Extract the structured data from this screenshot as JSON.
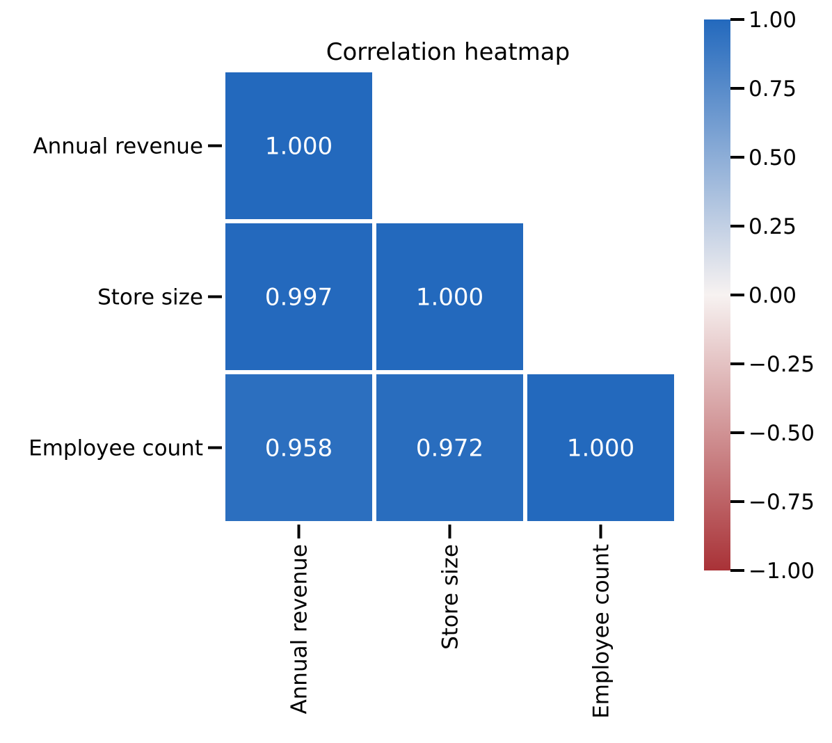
{
  "chart_data": {
    "type": "heatmap",
    "title": "Correlation heatmap",
    "rows": [
      "Annual revenue",
      "Store size",
      "Employee count"
    ],
    "columns": [
      "Annual revenue",
      "Store size",
      "Employee count"
    ],
    "mask": "upper-triangle",
    "values": [
      [
        1.0,
        null,
        null
      ],
      [
        0.997,
        1.0,
        null
      ],
      [
        0.958,
        0.972,
        1.0
      ]
    ],
    "value_labels": [
      [
        "1.000",
        null,
        null
      ],
      [
        "0.997",
        "1.000",
        null
      ],
      [
        "0.958",
        "0.972",
        "1.000"
      ]
    ],
    "colorbar": {
      "vmin": -1.0,
      "vmax": 1.0,
      "ticks": [
        1.0,
        0.75,
        0.5,
        0.25,
        0.0,
        -0.25,
        -0.5,
        -0.75,
        -1.0
      ],
      "tick_labels": [
        "1.00",
        "0.75",
        "0.50",
        "0.25",
        "0.00",
        "−0.25",
        "−0.50",
        "−0.75",
        "−1.00"
      ]
    },
    "colormap": {
      "low": "#a93237",
      "mid": "#f7f2f1",
      "high": "#2369bd"
    },
    "cell_text_color": "#ffffff",
    "cell_border_color": "#ffffff"
  }
}
